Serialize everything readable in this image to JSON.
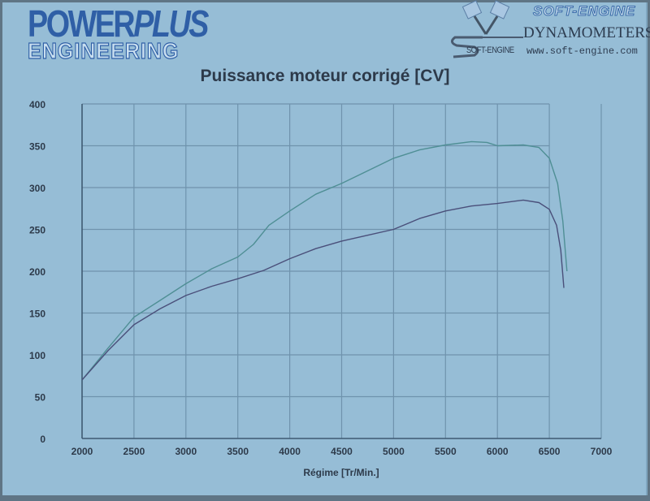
{
  "header": {
    "logo_left": {
      "line1_a": "POWER",
      "line1_b": "PLUS",
      "line2": "ENGINEERING"
    },
    "logo_right": {
      "brand": "SOFT-ENGINE",
      "subtitle": "DYNAMOMETERS",
      "small_logo": "SOFT-ENGINE",
      "url": "www.soft-engine.com"
    }
  },
  "colors": {
    "background": "#96bdd6",
    "grid": "#6f93ad",
    "axis": "#3e5a72",
    "series_green": "#4f8f95",
    "series_purple": "#4a4f7a",
    "text": "#2d3a4a"
  },
  "chart_data": {
    "type": "line",
    "title": "Puissance moteur corrigé [CV]",
    "xlabel": "Régime [Tr/Min.]",
    "ylabel": "",
    "xlim": [
      2000,
      7000
    ],
    "ylim": [
      0,
      400
    ],
    "x_ticks": [
      2000,
      2500,
      3000,
      3500,
      4000,
      4500,
      5000,
      5500,
      6000,
      6500,
      7000
    ],
    "y_ticks": [
      0,
      50,
      100,
      150,
      200,
      250,
      300,
      350,
      400
    ],
    "grid": true,
    "legend": null,
    "series": [
      {
        "name": "Upper curve (green)",
        "color": "#4f8f95",
        "points": [
          [
            2000,
            70
          ],
          [
            2250,
            108
          ],
          [
            2500,
            145
          ],
          [
            2750,
            165
          ],
          [
            3000,
            185
          ],
          [
            3250,
            203
          ],
          [
            3500,
            217
          ],
          [
            3650,
            232
          ],
          [
            3800,
            255
          ],
          [
            4000,
            272
          ],
          [
            4250,
            292
          ],
          [
            4500,
            305
          ],
          [
            4750,
            320
          ],
          [
            5000,
            335
          ],
          [
            5250,
            345
          ],
          [
            5500,
            351
          ],
          [
            5750,
            355
          ],
          [
            5900,
            354
          ],
          [
            6000,
            350
          ],
          [
            6250,
            351
          ],
          [
            6400,
            348
          ],
          [
            6500,
            335
          ],
          [
            6580,
            305
          ],
          [
            6630,
            260
          ],
          [
            6670,
            200
          ]
        ]
      },
      {
        "name": "Lower curve (purple)",
        "color": "#4a4f7a",
        "points": [
          [
            2000,
            70
          ],
          [
            2250,
            105
          ],
          [
            2500,
            136
          ],
          [
            2750,
            155
          ],
          [
            3000,
            171
          ],
          [
            3250,
            182
          ],
          [
            3500,
            191
          ],
          [
            3750,
            201
          ],
          [
            4000,
            215
          ],
          [
            4250,
            227
          ],
          [
            4500,
            236
          ],
          [
            4750,
            243
          ],
          [
            5000,
            250
          ],
          [
            5250,
            263
          ],
          [
            5500,
            272
          ],
          [
            5750,
            278
          ],
          [
            6000,
            281
          ],
          [
            6250,
            285
          ],
          [
            6400,
            282
          ],
          [
            6500,
            274
          ],
          [
            6570,
            255
          ],
          [
            6610,
            225
          ],
          [
            6640,
            180
          ]
        ]
      }
    ]
  }
}
